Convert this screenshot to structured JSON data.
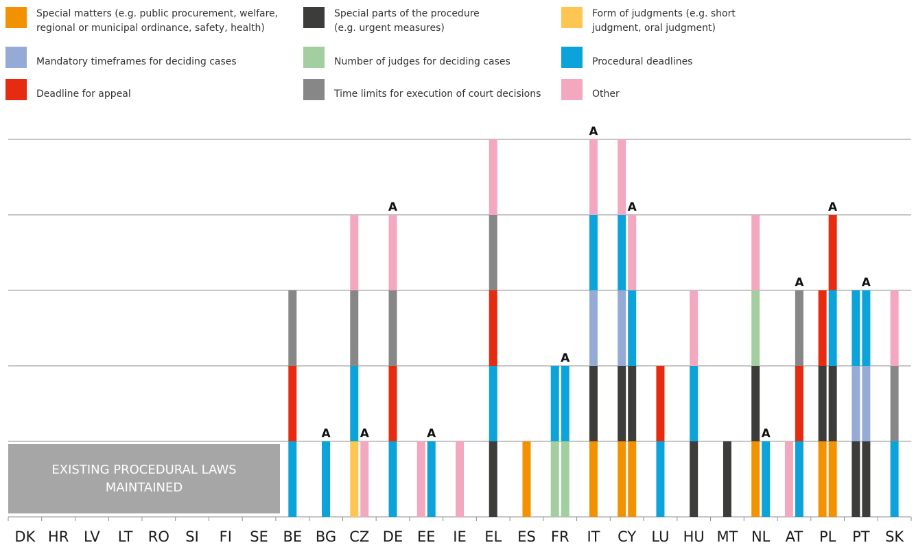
{
  "legend": [
    {
      "key": "special_matters",
      "label": "Special matters (e.g. public procurement, welfare,\nregional or municipal ordinance, safety, health)",
      "color": "#f39200"
    },
    {
      "key": "special_parts",
      "label": "Special parts of the procedure\n(e.g. urgent measures)",
      "color": "#3c3c3b"
    },
    {
      "key": "form_judgments",
      "label": "Form of judgments (e.g. short\njudgment, oral judgment)",
      "color": "#fdc652"
    },
    {
      "key": "mandatory_timeframes",
      "label": "Mandatory timeframes for deciding cases",
      "color": "#95abd6"
    },
    {
      "key": "number_judges",
      "label": "Number of judges for deciding cases",
      "color": "#a3ce9f"
    },
    {
      "key": "procedural_deadlines",
      "label": "Procedural deadlines",
      "color": "#0ca3da"
    },
    {
      "key": "deadline_appeal",
      "label": "Deadline for appeal",
      "color": "#e62b10"
    },
    {
      "key": "time_limits_execution",
      "label": "Time limits for execution of court decisions",
      "color": "#878787"
    },
    {
      "key": "other",
      "label": "Other",
      "color": "#f3a8c0"
    }
  ],
  "existing_box_label": "EXISTING PROCEDURAL LAWS\nMAINTAINED",
  "chart_data": {
    "type": "bar",
    "stacked": true,
    "ylim": [
      0,
      5
    ],
    "grid": true,
    "annotation_marker": "A",
    "countries_without_bars": [
      "DK",
      "HR",
      "LV",
      "LT",
      "RO",
      "SI",
      "FI",
      "SE"
    ],
    "categories": [
      {
        "code": "DK",
        "bars": []
      },
      {
        "code": "HR",
        "bars": []
      },
      {
        "code": "LV",
        "bars": []
      },
      {
        "code": "LT",
        "bars": []
      },
      {
        "code": "RO",
        "bars": []
      },
      {
        "code": "SI",
        "bars": []
      },
      {
        "code": "FI",
        "bars": []
      },
      {
        "code": "SE",
        "bars": []
      },
      {
        "code": "BE",
        "bars": [
          {
            "a": false,
            "stack": [
              "procedural_deadlines",
              "deadline_appeal",
              "time_limits_execution"
            ]
          }
        ]
      },
      {
        "code": "BG",
        "bars": [
          {
            "a": true,
            "stack": [
              "procedural_deadlines"
            ]
          }
        ]
      },
      {
        "code": "CZ",
        "bars": [
          {
            "a": false,
            "stack": [
              "form_judgments",
              "procedural_deadlines",
              "time_limits_execution",
              "other"
            ]
          },
          {
            "a": true,
            "stack": [
              "other"
            ]
          }
        ]
      },
      {
        "code": "DE",
        "bars": [
          {
            "a": true,
            "stack": [
              "procedural_deadlines",
              "deadline_appeal",
              "time_limits_execution",
              "other"
            ]
          }
        ]
      },
      {
        "code": "EE",
        "bars": [
          {
            "a": false,
            "stack": [
              "other"
            ]
          },
          {
            "a": true,
            "stack": [
              "procedural_deadlines"
            ]
          }
        ]
      },
      {
        "code": "IE",
        "bars": [
          {
            "a": false,
            "stack": [
              "other"
            ]
          }
        ]
      },
      {
        "code": "EL",
        "bars": [
          {
            "a": false,
            "stack": [
              "special_parts",
              "procedural_deadlines",
              "deadline_appeal",
              "time_limits_execution",
              "other"
            ]
          }
        ]
      },
      {
        "code": "ES",
        "bars": [
          {
            "a": false,
            "stack": [
              "special_matters"
            ]
          }
        ]
      },
      {
        "code": "FR",
        "bars": [
          {
            "a": false,
            "stack": [
              "number_judges",
              "procedural_deadlines"
            ]
          },
          {
            "a": true,
            "stack": [
              "number_judges",
              "procedural_deadlines"
            ]
          }
        ]
      },
      {
        "code": "IT",
        "bars": [
          {
            "a": true,
            "stack": [
              "special_matters",
              "special_parts",
              "mandatory_timeframes",
              "procedural_deadlines",
              "other"
            ]
          }
        ]
      },
      {
        "code": "CY",
        "bars": [
          {
            "a": false,
            "stack": [
              "special_matters",
              "special_parts",
              "mandatory_timeframes",
              "procedural_deadlines",
              "other"
            ]
          },
          {
            "a": true,
            "stack": [
              "special_matters",
              "special_parts",
              "procedural_deadlines",
              "other"
            ]
          }
        ]
      },
      {
        "code": "LU",
        "bars": [
          {
            "a": false,
            "stack": [
              "procedural_deadlines",
              "deadline_appeal"
            ]
          }
        ]
      },
      {
        "code": "HU",
        "bars": [
          {
            "a": false,
            "stack": [
              "special_parts",
              "procedural_deadlines",
              "other"
            ]
          }
        ]
      },
      {
        "code": "MT",
        "bars": [
          {
            "a": false,
            "stack": [
              "special_parts"
            ]
          }
        ]
      },
      {
        "code": "NL",
        "bars": [
          {
            "a": false,
            "stack": [
              "special_matters",
              "special_parts",
              "number_judges",
              "other"
            ]
          },
          {
            "a": true,
            "stack": [
              "procedural_deadlines"
            ]
          }
        ]
      },
      {
        "code": "AT",
        "bars": [
          {
            "a": false,
            "stack": [
              "other"
            ]
          },
          {
            "a": true,
            "stack": [
              "procedural_deadlines",
              "deadline_appeal",
              "time_limits_execution"
            ]
          }
        ]
      },
      {
        "code": "PL",
        "bars": [
          {
            "a": false,
            "stack": [
              "special_matters",
              "special_parts",
              "deadline_appeal"
            ]
          },
          {
            "a": true,
            "stack": [
              "special_matters",
              "special_parts",
              "procedural_deadlines",
              "deadline_appeal"
            ]
          }
        ]
      },
      {
        "code": "PT",
        "bars": [
          {
            "a": false,
            "stack": [
              "special_parts",
              "mandatory_timeframes",
              "procedural_deadlines"
            ]
          },
          {
            "a": true,
            "stack": [
              "special_parts",
              "mandatory_timeframes",
              "procedural_deadlines"
            ]
          }
        ]
      },
      {
        "code": "SK",
        "bars": [
          {
            "a": false,
            "stack": [
              "procedural_deadlines",
              "time_limits_execution",
              "other"
            ]
          }
        ]
      }
    ]
  }
}
